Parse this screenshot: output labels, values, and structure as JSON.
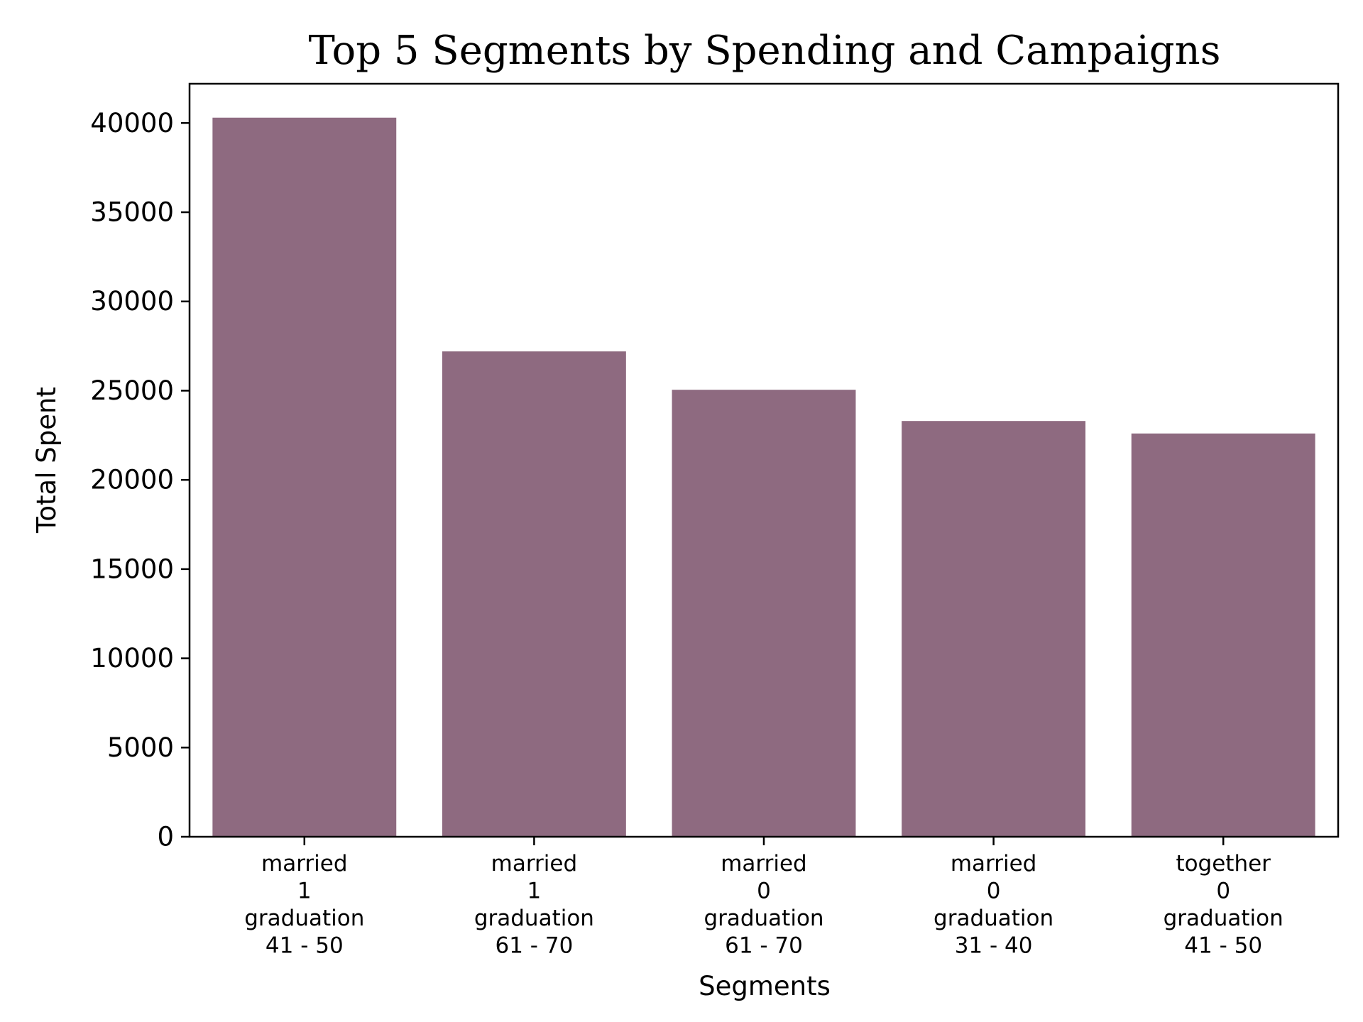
{
  "chart_data": {
    "type": "bar",
    "title": "Top 5 Segments by Spending and Campaigns",
    "xlabel": "Segments",
    "ylabel": "Total Spent",
    "categories": [
      [
        "married",
        "1",
        "graduation",
        "41 - 50"
      ],
      [
        "married",
        "1",
        "graduation",
        "61 - 70"
      ],
      [
        "married",
        "0",
        "graduation",
        "61 - 70"
      ],
      [
        "married",
        "0",
        "graduation",
        "31 - 40"
      ],
      [
        "together",
        "0",
        "graduation",
        "41 - 50"
      ]
    ],
    "values": [
      40300,
      27200,
      25050,
      23300,
      22600
    ],
    "ylim": [
      0,
      42200
    ],
    "yticks": [
      0,
      5000,
      10000,
      15000,
      20000,
      25000,
      30000,
      35000,
      40000
    ],
    "ytick_labels": [
      "0",
      "5000",
      "10000",
      "15000",
      "20000",
      "25000",
      "30000",
      "35000",
      "40000"
    ],
    "bar_color": "#8e6a80",
    "grid": false,
    "legend": "none"
  }
}
